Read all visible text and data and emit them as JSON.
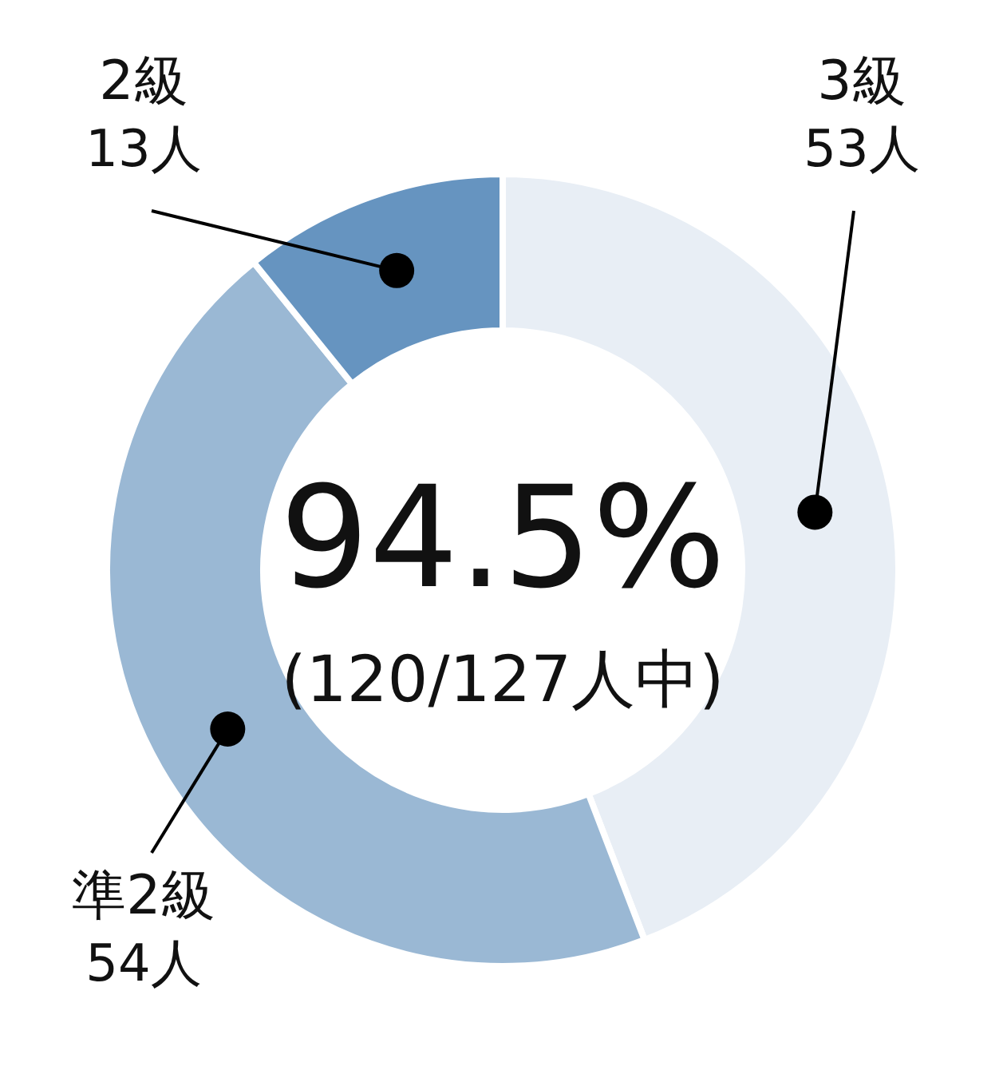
{
  "chart_data": {
    "type": "donut",
    "categories": [
      "3級",
      "準2級",
      "2級"
    ],
    "values": [
      53,
      54,
      13
    ],
    "value_labels": [
      "53人",
      "54人",
      "13人"
    ],
    "colors": [
      "#e8eef5",
      "#9ab8d4",
      "#6694c0"
    ],
    "annotations": [
      "94.5%",
      "(120/127人中)"
    ]
  }
}
